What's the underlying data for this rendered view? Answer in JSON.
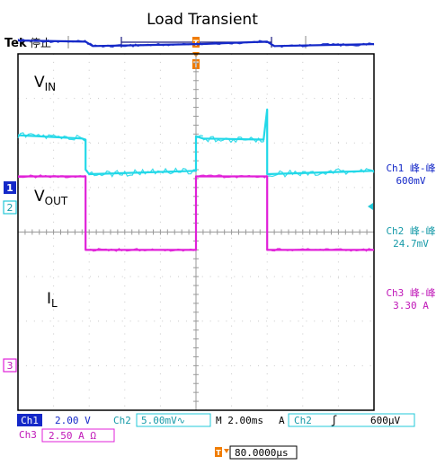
{
  "title": "Load Transient",
  "scope": {
    "brand": "Tek",
    "run_state": "停止",
    "trigger_marker": "T",
    "time_offset": "80.0000µs"
  },
  "colors": {
    "ch1": "#1428c8",
    "ch2": "#22d8e8",
    "ch3": "#e020d8",
    "grid": "#c8c8c8",
    "frame": "#000000",
    "trigger": "#f07c00"
  },
  "settings": {
    "ch1_badge": "Ch1",
    "ch1_scale": "2.00 V",
    "ch2_badge": "Ch2",
    "ch2_scale": "5.00mV∿",
    "ch3_badge": "Ch3",
    "ch3_scale": "2.50 A Ω",
    "timebase": "M 2.00ms",
    "trigger_mode": "A",
    "trigger_source": "Ch2",
    "trigger_slope": "ʃ",
    "trigger_level": "600µV"
  },
  "measurements": [
    {
      "label": "Ch1 峰-峰",
      "value": "600mV"
    },
    {
      "label": "Ch2 峰-峰",
      "value": "24.7mV"
    },
    {
      "label": "Ch3 峰-峰",
      "value": "3.30 A"
    }
  ],
  "chart_data": {
    "type": "line",
    "title": "Load Transient",
    "x_divisions": 10,
    "y_divisions": 8,
    "series": [
      {
        "name": "VIN",
        "channel": "1",
        "points": [
          [
            0,
            8.6
          ],
          [
            0.19,
            8.55
          ],
          [
            0.21,
            8.35
          ],
          [
            0.5,
            8.44
          ],
          [
            0.51,
            8.44
          ],
          [
            0.7,
            8.55
          ],
          [
            0.72,
            8.35
          ],
          [
            1,
            8.44
          ]
        ]
      },
      {
        "name": "VOUT",
        "channel": "2",
        "points": [
          [
            0,
            4.35
          ],
          [
            0.18,
            4.2
          ],
          [
            0.19,
            4.15
          ],
          [
            0.19,
            2.8
          ],
          [
            0.2,
            2.6
          ],
          [
            0.5,
            2.75
          ],
          [
            0.5,
            4.3
          ],
          [
            0.52,
            4.2
          ],
          [
            0.69,
            4.15
          ],
          [
            0.7,
            5.5
          ],
          [
            0.7,
            2.6
          ],
          [
            1,
            2.75
          ]
        ]
      },
      {
        "name": "IL",
        "channel": "3",
        "points": [
          [
            0,
            2.5
          ],
          [
            0.19,
            2.5
          ],
          [
            0.19,
            -0.8
          ],
          [
            0.5,
            -0.8
          ],
          [
            0.5,
            2.5
          ],
          [
            0.7,
            2.5
          ],
          [
            0.7,
            -0.8
          ],
          [
            1,
            -0.8
          ]
        ]
      }
    ]
  },
  "labels": {
    "vin": "V",
    "vin_sub": "IN",
    "vout": "V",
    "vout_sub": "OUT",
    "il": "I",
    "il_sub": "L",
    "ch1_marker": "1",
    "ch2_marker": "2",
    "ch3_marker": "3"
  }
}
